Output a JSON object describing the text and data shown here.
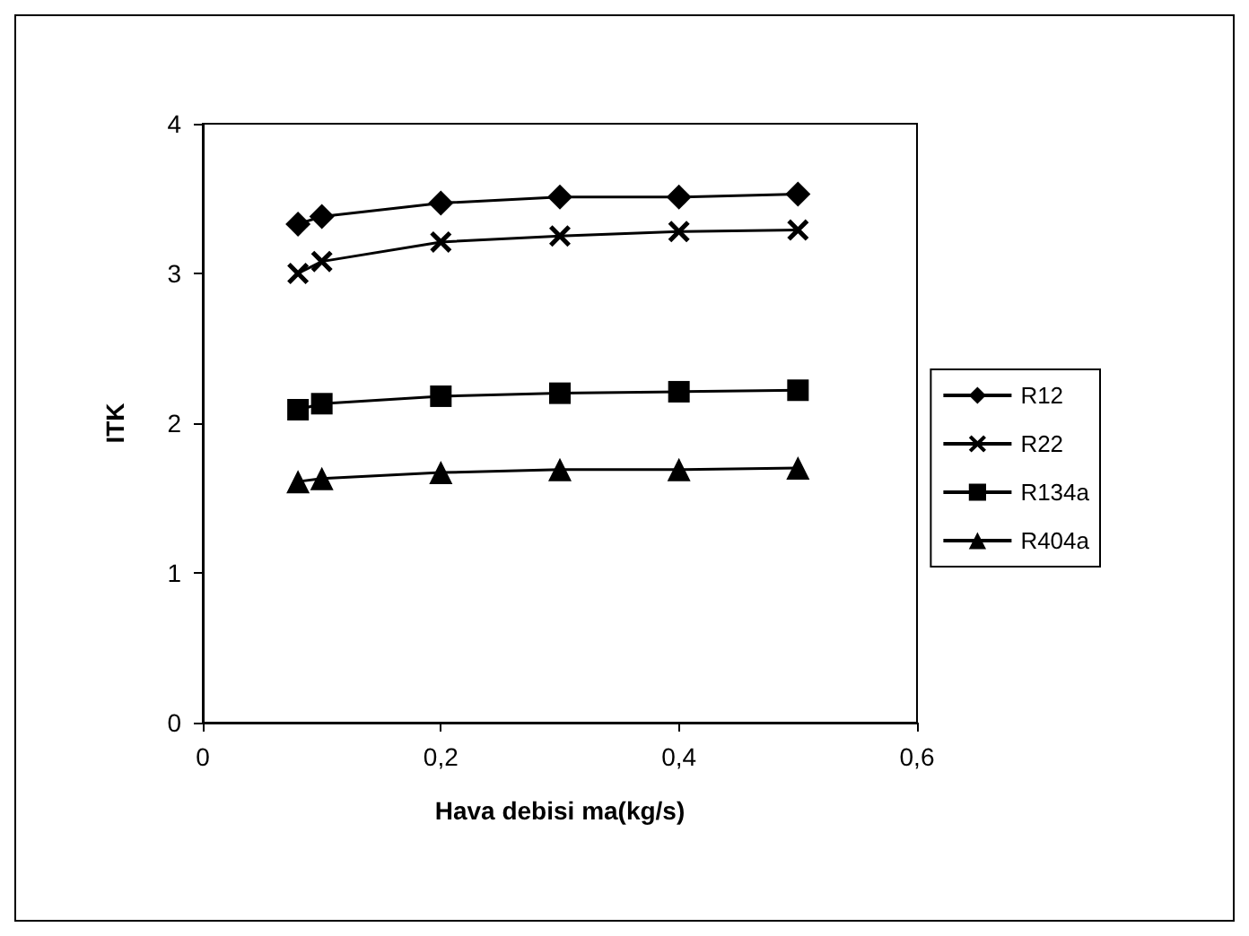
{
  "chart_data": {
    "type": "line",
    "xlabel": "Hava debisi ma(kg/s)",
    "ylabel": "ITK",
    "x": [
      0.08,
      0.1,
      0.2,
      0.3,
      0.4,
      0.5
    ],
    "series": [
      {
        "name": "R12",
        "color": "#000000",
        "marker": "diamond",
        "values": [
          3.33,
          3.38,
          3.47,
          3.51,
          3.51,
          3.53
        ]
      },
      {
        "name": "R22",
        "color": "#000000",
        "marker": "cross",
        "values": [
          3.0,
          3.08,
          3.21,
          3.25,
          3.28,
          3.29
        ]
      },
      {
        "name": "R134a",
        "color": "#000000",
        "marker": "square",
        "values": [
          2.09,
          2.13,
          2.18,
          2.2,
          2.21,
          2.22
        ]
      },
      {
        "name": "R404a",
        "color": "#000000",
        "marker": "triangle",
        "values": [
          1.61,
          1.63,
          1.67,
          1.69,
          1.69,
          1.7
        ]
      }
    ],
    "xlim": [
      0,
      0.6
    ],
    "xticks": [
      0,
      {
        "value": 0.2,
        "label": "0,2"
      },
      {
        "value": 0.4,
        "label": "0,4"
      },
      {
        "value": 0.6,
        "label": "0,6"
      }
    ],
    "ylim": [
      0,
      4
    ],
    "yticks": [
      0,
      1,
      2,
      3,
      4
    ],
    "grid": false,
    "legend": "right",
    "line_style": "solid"
  }
}
